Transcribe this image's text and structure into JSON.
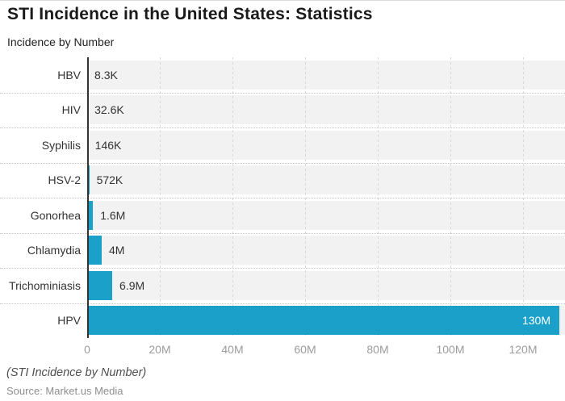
{
  "title": "STI Incidence in the United States: Statistics",
  "subtitle": "Incidence by Number",
  "footer": {
    "caption": "(STI Incidence by Number)",
    "source": "Source: Market.us Media"
  },
  "colors": {
    "bar": "#1aa0c9",
    "row_band": "#f2f2f2",
    "axis_line": "#333333",
    "vertical_grid": "#d8d8d8",
    "row_separator": "#c6c6c6",
    "tick_text": "#9c9c9c",
    "label_text": "#333333",
    "value_label_inside_bar": "#ffffff",
    "background": "#ffffff"
  },
  "chart_data": {
    "type": "bar",
    "orientation": "horizontal",
    "title": "STI Incidence in the United States: Statistics",
    "subtitle": "Incidence by Number",
    "categories": [
      "HBV",
      "HIV",
      "Syphilis",
      "HSV-2",
      "Gonorhea",
      "Chlamydia",
      "Trichominiasis",
      "HPV"
    ],
    "values": [
      8300,
      32600,
      146000,
      572000,
      1600000,
      4000000,
      6900000,
      130000000
    ],
    "values_millions": [
      0.0083,
      0.0326,
      0.146,
      0.572,
      1.6,
      4,
      6.9,
      130
    ],
    "value_labels": [
      "8.3K",
      "32.6K",
      "146K",
      "572K",
      "1.6M",
      "4M",
      "6.9M",
      "130M"
    ],
    "x_tick_labels": [
      "0",
      "20M",
      "40M",
      "60M",
      "80M",
      "100M",
      "120M"
    ],
    "x_tick_values_millions": [
      0,
      20,
      40,
      60,
      80,
      100,
      120
    ],
    "xlim_millions": [
      0,
      131.5
    ],
    "xlabel": "",
    "ylabel": "",
    "legend": "none",
    "grid": "vertical dashed gridlines at 20M steps; dotted horizontal row separators; gray row bands",
    "last_bar_label_inside": true
  }
}
